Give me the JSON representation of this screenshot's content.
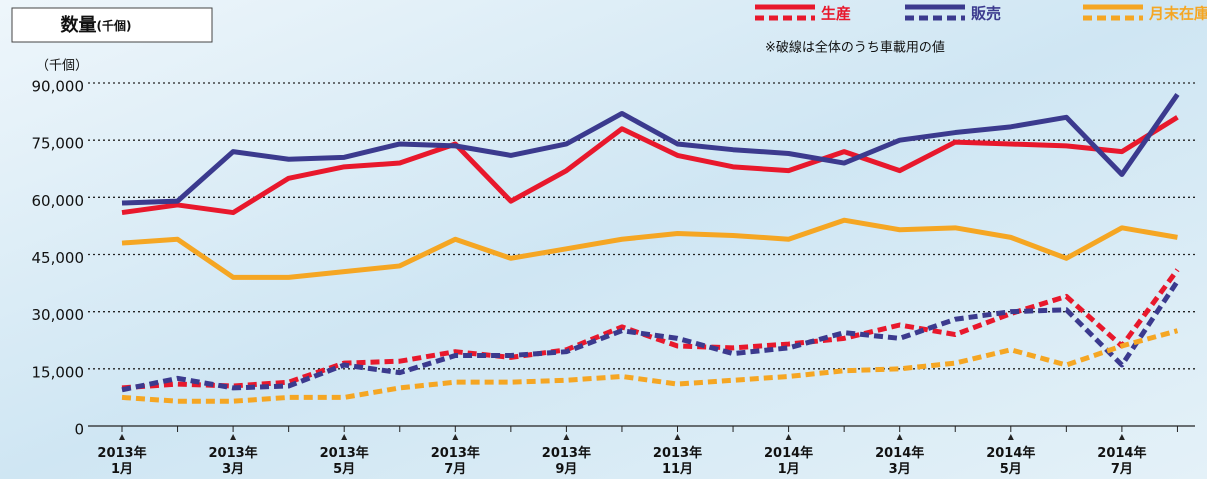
{
  "chart_data": {
    "type": "line",
    "title": "数量",
    "title_unit": "(千個)",
    "y_unit": "（千個）",
    "note": "※破線は全体のうち車載用の値",
    "categories": [
      "2013年\n1月",
      null,
      "2013年\n3月",
      null,
      "2013年\n5月",
      null,
      "2013年\n7月",
      null,
      "2013年\n9月",
      null,
      "2013年\n11月",
      null,
      "2014年\n1月",
      null,
      "2014年\n3月",
      null,
      "2014年\n5月",
      null,
      "2014年\n7月",
      null
    ],
    "series": [
      {
        "name": "生産",
        "color": "#e8182c",
        "values": [
          56000,
          58000,
          56000,
          65000,
          68000,
          69000,
          74000,
          59000,
          67000,
          78000,
          71000,
          68000,
          67000,
          72000,
          67000,
          74500,
          74000,
          73500,
          72000,
          81000
        ],
        "dashed_values": [
          10000,
          11000,
          10500,
          11500,
          16500,
          17000,
          19500,
          18000,
          20000,
          26000,
          21000,
          20500,
          21500,
          23000,
          26500,
          24000,
          29500,
          34000,
          21000,
          41000
        ]
      },
      {
        "name": "販売",
        "color": "#3b3a8e",
        "values": [
          58500,
          59000,
          72000,
          70000,
          70500,
          74000,
          73500,
          71000,
          74000,
          82000,
          74000,
          72500,
          71500,
          69000,
          75000,
          77000,
          78500,
          81000,
          66000,
          87000
        ],
        "dashed_values": [
          9500,
          12500,
          10000,
          10500,
          16000,
          14000,
          18500,
          18500,
          19500,
          25000,
          23000,
          19000,
          20500,
          24500,
          23000,
          28000,
          30000,
          30500,
          16000,
          38000
        ]
      },
      {
        "name": "月末在庫",
        "color": "#f5a623",
        "values": [
          48000,
          49000,
          39000,
          39000,
          40500,
          42000,
          49000,
          44000,
          46500,
          49000,
          50500,
          50000,
          49000,
          54000,
          51500,
          52000,
          49500,
          44000,
          52000,
          49500
        ],
        "dashed_values": [
          7500,
          6500,
          6500,
          7500,
          7500,
          10000,
          11500,
          11500,
          12000,
          13000,
          11000,
          12000,
          13000,
          14500,
          15000,
          16500,
          20000,
          16000,
          21000,
          25000
        ]
      }
    ],
    "ylim": [
      0,
      90000
    ],
    "yticks": [
      0,
      {
        "value": 15000,
        "label": "15,000"
      },
      {
        "value": 30000,
        "label": "30,000"
      },
      {
        "value": 45000,
        "label": "45,000"
      },
      {
        "value": 60000,
        "label": "60,000"
      },
      {
        "value": 75000,
        "label": "75,000"
      },
      {
        "value": 90000,
        "label": "90,000"
      }
    ],
    "grid": true
  }
}
